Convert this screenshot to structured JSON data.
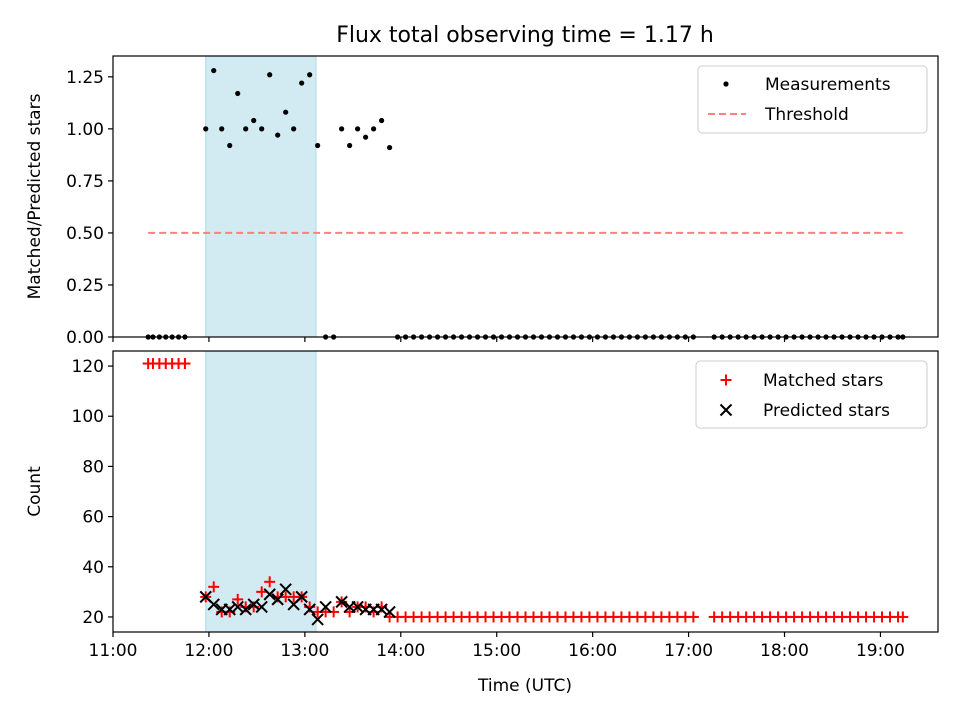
{
  "figure": {
    "title": "Flux total observing time = 1.17 h",
    "x_label": "Time (UTC)",
    "shaded_interval": [
      "11:58",
      "13:07"
    ],
    "colors": {
      "shade": "#add8e6",
      "matched": "#ff0000",
      "predicted": "#000000",
      "threshold": "#ff7f7f",
      "measurement": "#000000"
    }
  },
  "chart_data": [
    {
      "type": "scatter",
      "ylabel": "Matched/Predicted stars",
      "xlim": [
        "11:00",
        "19:36"
      ],
      "ylim": [
        0,
        1.35
      ],
      "x_ticks": [
        "11:00",
        "12:00",
        "13:00",
        "14:00",
        "15:00",
        "16:00",
        "17:00",
        "18:00",
        "19:00"
      ],
      "y_ticks": [
        "0.00",
        "0.25",
        "0.50",
        "0.75",
        "1.00",
        "1.25"
      ],
      "legend": {
        "location": "upper right",
        "entries": [
          "Measurements",
          "Threshold"
        ]
      },
      "series": [
        {
          "name": "Measurements",
          "points": [
            [
              "11:22",
              0
            ],
            [
              "11:25",
              0
            ],
            [
              "11:29",
              0
            ],
            [
              "11:33",
              0
            ],
            [
              "11:37",
              0
            ],
            [
              "11:41",
              0
            ],
            [
              "11:45",
              0
            ],
            [
              "11:58",
              1.0
            ],
            [
              "12:03",
              1.28
            ],
            [
              "12:08",
              1.0
            ],
            [
              "12:13",
              0.92
            ],
            [
              "12:18",
              1.17
            ],
            [
              "12:23",
              1.0
            ],
            [
              "12:28",
              1.04
            ],
            [
              "12:33",
              1.0
            ],
            [
              "12:38",
              1.26
            ],
            [
              "12:43",
              0.97
            ],
            [
              "12:48",
              1.08
            ],
            [
              "12:53",
              1.0
            ],
            [
              "12:58",
              1.22
            ],
            [
              "13:03",
              1.26
            ],
            [
              "13:08",
              0.92
            ],
            [
              "13:13",
              0
            ],
            [
              "13:18",
              0
            ],
            [
              "13:23",
              1.0
            ],
            [
              "13:28",
              0.92
            ],
            [
              "13:33",
              1.0
            ],
            [
              "13:38",
              0.96
            ],
            [
              "13:43",
              1.0
            ],
            [
              "13:48",
              1.04
            ],
            [
              "13:53",
              0.91
            ],
            [
              "13:58",
              0
            ],
            [
              "14:03",
              0
            ],
            [
              "14:08",
              0
            ],
            [
              "14:13",
              0
            ],
            [
              "14:18",
              0
            ],
            [
              "14:23",
              0
            ],
            [
              "14:28",
              0
            ],
            [
              "14:33",
              0
            ],
            [
              "14:38",
              0
            ],
            [
              "14:43",
              0
            ],
            [
              "14:48",
              0
            ],
            [
              "14:53",
              0
            ],
            [
              "14:58",
              0
            ],
            [
              "15:03",
              0
            ],
            [
              "15:08",
              0
            ],
            [
              "15:13",
              0
            ],
            [
              "15:18",
              0
            ],
            [
              "15:23",
              0
            ],
            [
              "15:28",
              0
            ],
            [
              "15:33",
              0
            ],
            [
              "15:38",
              0
            ],
            [
              "15:43",
              0
            ],
            [
              "15:48",
              0
            ],
            [
              "15:53",
              0
            ],
            [
              "15:58",
              0
            ],
            [
              "16:03",
              0
            ],
            [
              "16:08",
              0
            ],
            [
              "16:13",
              0
            ],
            [
              "16:18",
              0
            ],
            [
              "16:23",
              0
            ],
            [
              "16:28",
              0
            ],
            [
              "16:33",
              0
            ],
            [
              "16:38",
              0
            ],
            [
              "16:43",
              0
            ],
            [
              "16:48",
              0
            ],
            [
              "16:53",
              0
            ],
            [
              "16:58",
              0
            ],
            [
              "17:03",
              0
            ],
            [
              "17:16",
              0
            ],
            [
              "17:21",
              0
            ],
            [
              "17:26",
              0
            ],
            [
              "17:31",
              0
            ],
            [
              "17:36",
              0
            ],
            [
              "17:41",
              0
            ],
            [
              "17:46",
              0
            ],
            [
              "17:51",
              0
            ],
            [
              "17:56",
              0
            ],
            [
              "18:01",
              0
            ],
            [
              "18:06",
              0
            ],
            [
              "18:11",
              0
            ],
            [
              "18:16",
              0
            ],
            [
              "18:21",
              0
            ],
            [
              "18:26",
              0
            ],
            [
              "18:31",
              0
            ],
            [
              "18:36",
              0
            ],
            [
              "18:41",
              0
            ],
            [
              "18:46",
              0
            ],
            [
              "18:51",
              0
            ],
            [
              "18:56",
              0
            ],
            [
              "19:01",
              0
            ],
            [
              "19:06",
              0
            ],
            [
              "19:11",
              0
            ],
            [
              "19:14",
              0
            ]
          ]
        },
        {
          "name": "Threshold",
          "line": [
            [
              "11:22",
              0.5
            ],
            [
              "19:14",
              0.5
            ]
          ]
        }
      ]
    },
    {
      "type": "scatter",
      "ylabel": "Count",
      "xlim": [
        "11:00",
        "19:36"
      ],
      "ylim": [
        14,
        126
      ],
      "x_ticks": [
        "11:00",
        "12:00",
        "13:00",
        "14:00",
        "15:00",
        "16:00",
        "17:00",
        "18:00",
        "19:00"
      ],
      "y_ticks": [
        "20",
        "40",
        "60",
        "80",
        "100",
        "120"
      ],
      "legend": {
        "location": "upper right",
        "entries": [
          "Matched stars",
          "Predicted stars"
        ]
      },
      "series": [
        {
          "name": "Matched stars",
          "points": [
            [
              "11:22",
              121
            ],
            [
              "11:25",
              121
            ],
            [
              "11:29",
              121
            ],
            [
              "11:33",
              121
            ],
            [
              "11:37",
              121
            ],
            [
              "11:41",
              121
            ],
            [
              "11:45",
              121
            ],
            [
              "11:58",
              28
            ],
            [
              "12:03",
              32
            ],
            [
              "12:08",
              22
            ],
            [
              "12:13",
              22
            ],
            [
              "12:18",
              27
            ],
            [
              "12:23",
              24
            ],
            [
              "12:28",
              24
            ],
            [
              "12:33",
              30
            ],
            [
              "12:38",
              34
            ],
            [
              "12:43",
              28
            ],
            [
              "12:48",
              28
            ],
            [
              "12:53",
              28
            ],
            [
              "12:58",
              28
            ],
            [
              "13:03",
              24
            ],
            [
              "13:08",
              22
            ],
            [
              "13:13",
              22
            ],
            [
              "13:18",
              22
            ],
            [
              "13:23",
              26
            ],
            [
              "13:28",
              22
            ],
            [
              "13:33",
              24
            ],
            [
              "13:38",
              24
            ],
            [
              "13:43",
              22
            ],
            [
              "13:48",
              24
            ],
            [
              "13:53",
              20
            ],
            [
              "13:58",
              20
            ],
            [
              "14:03",
              20
            ],
            [
              "14:08",
              20
            ],
            [
              "14:13",
              20
            ],
            [
              "14:18",
              20
            ],
            [
              "14:23",
              20
            ],
            [
              "14:28",
              20
            ],
            [
              "14:33",
              20
            ],
            [
              "14:38",
              20
            ],
            [
              "14:43",
              20
            ],
            [
              "14:48",
              20
            ],
            [
              "14:53",
              20
            ],
            [
              "14:58",
              20
            ],
            [
              "15:03",
              20
            ],
            [
              "15:08",
              20
            ],
            [
              "15:13",
              20
            ],
            [
              "15:18",
              20
            ],
            [
              "15:23",
              20
            ],
            [
              "15:28",
              20
            ],
            [
              "15:33",
              20
            ],
            [
              "15:38",
              20
            ],
            [
              "15:43",
              20
            ],
            [
              "15:48",
              20
            ],
            [
              "15:53",
              20
            ],
            [
              "15:58",
              20
            ],
            [
              "16:03",
              20
            ],
            [
              "16:08",
              20
            ],
            [
              "16:13",
              20
            ],
            [
              "16:18",
              20
            ],
            [
              "16:23",
              20
            ],
            [
              "16:28",
              20
            ],
            [
              "16:33",
              20
            ],
            [
              "16:38",
              20
            ],
            [
              "16:43",
              20
            ],
            [
              "16:48",
              20
            ],
            [
              "16:53",
              20
            ],
            [
              "16:58",
              20
            ],
            [
              "17:03",
              20
            ],
            [
              "17:16",
              20
            ],
            [
              "17:21",
              20
            ],
            [
              "17:26",
              20
            ],
            [
              "17:31",
              20
            ],
            [
              "17:36",
              20
            ],
            [
              "17:41",
              20
            ],
            [
              "17:46",
              20
            ],
            [
              "17:51",
              20
            ],
            [
              "17:56",
              20
            ],
            [
              "18:01",
              20
            ],
            [
              "18:06",
              20
            ],
            [
              "18:11",
              20
            ],
            [
              "18:16",
              20
            ],
            [
              "18:21",
              20
            ],
            [
              "18:26",
              20
            ],
            [
              "18:31",
              20
            ],
            [
              "18:36",
              20
            ],
            [
              "18:41",
              20
            ],
            [
              "18:46",
              20
            ],
            [
              "18:51",
              20
            ],
            [
              "18:56",
              20
            ],
            [
              "19:01",
              20
            ],
            [
              "19:06",
              20
            ],
            [
              "19:11",
              20
            ],
            [
              "19:14",
              20
            ]
          ]
        },
        {
          "name": "Predicted stars",
          "points": [
            [
              "11:58",
              28
            ],
            [
              "12:03",
              25
            ],
            [
              "12:08",
              23
            ],
            [
              "12:13",
              23
            ],
            [
              "12:18",
              24
            ],
            [
              "12:23",
              23
            ],
            [
              "12:28",
              25
            ],
            [
              "12:33",
              24
            ],
            [
              "12:38",
              29
            ],
            [
              "12:43",
              27
            ],
            [
              "12:48",
              31
            ],
            [
              "12:53",
              25
            ],
            [
              "12:58",
              28
            ],
            [
              "13:03",
              23
            ],
            [
              "13:08",
              19
            ],
            [
              "13:13",
              24
            ],
            [
              "13:23",
              26
            ],
            [
              "13:28",
              24
            ],
            [
              "13:33",
              24
            ],
            [
              "13:38",
              23
            ],
            [
              "13:43",
              23
            ],
            [
              "13:48",
              23
            ],
            [
              "13:53",
              22
            ]
          ]
        }
      ]
    }
  ]
}
